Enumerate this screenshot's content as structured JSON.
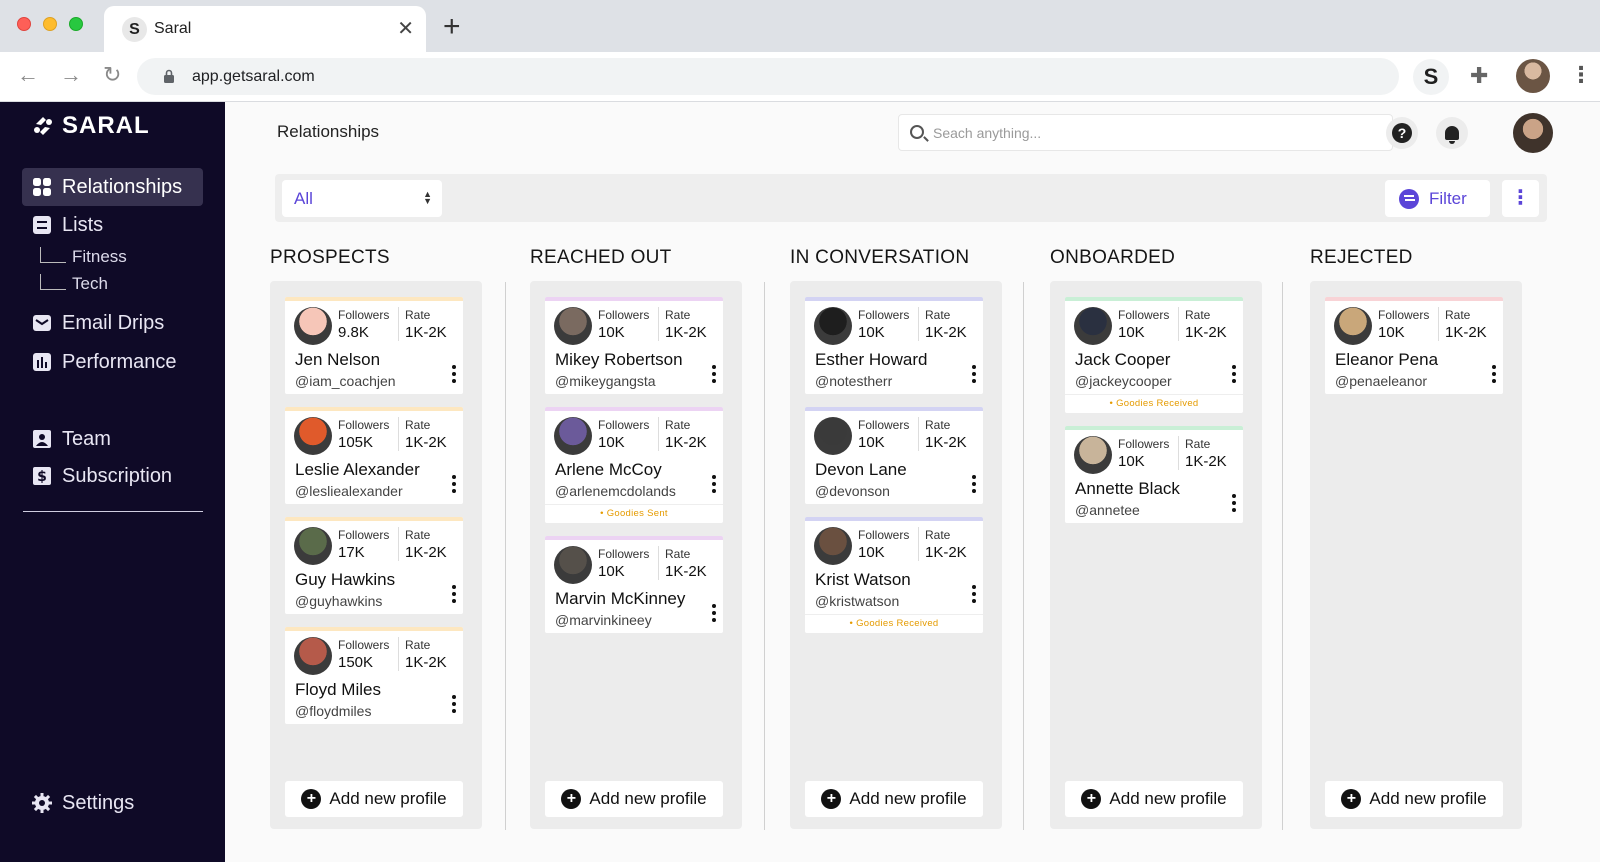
{
  "browser": {
    "tab_title": "Saral",
    "tab_favicon": "S",
    "url": "app.getsaral.com",
    "extension_label": "S"
  },
  "sidebar": {
    "logo_text": "SARAL",
    "items": [
      {
        "label": "Relationships",
        "icon": "grid-icon"
      },
      {
        "label": "Lists",
        "icon": "list-icon"
      },
      {
        "label": "Email Drips",
        "icon": "mail-icon"
      },
      {
        "label": "Performance",
        "icon": "chart-icon"
      },
      {
        "label": "Team",
        "icon": "user-card-icon"
      },
      {
        "label": "Subscription",
        "icon": "dollar-icon"
      }
    ],
    "sub_items": [
      "Fitness",
      "Tech"
    ],
    "settings_label": "Settings"
  },
  "header": {
    "title": "Relationships",
    "search_placeholder": "Seach anything..."
  },
  "toolbar": {
    "select_value": "All",
    "filter_label": "Filter",
    "accent": "#5b45d8"
  },
  "labels": {
    "followers": "Followers",
    "rate": "Rate",
    "add_profile": "Add new profile"
  },
  "columns": [
    {
      "title": "PROSPECTS",
      "stripe": "#fde7c0",
      "cards": [
        {
          "name": "Jen Nelson",
          "handle": "@iam_coachjen",
          "followers": "9.8K",
          "rate": "1K-2K",
          "badge": "",
          "avatar": "#f6c6b8"
        },
        {
          "name": "Leslie Alexander",
          "handle": "@lesliealexander",
          "followers": "105K",
          "rate": "1K-2K",
          "badge": "",
          "avatar": "#e05a2b"
        },
        {
          "name": "Guy Hawkins",
          "handle": "@guyhawkins",
          "followers": "17K",
          "rate": "1K-2K",
          "badge": "",
          "avatar": "#5a6b4a"
        },
        {
          "name": "Floyd Miles",
          "handle": "@floydmiles",
          "followers": "150K",
          "rate": "1K-2K",
          "badge": "",
          "avatar": "#b55a4a"
        }
      ]
    },
    {
      "title": "REACHED OUT",
      "stripe": "#ecd3f3",
      "cards": [
        {
          "name": "Mikey Robertson",
          "handle": "@mikeygangsta",
          "followers": "10K",
          "rate": "1K-2K",
          "badge": "",
          "avatar": "#7a6a60"
        },
        {
          "name": "Arlene McCoy",
          "handle": "@arlenemcdolands",
          "followers": "10K",
          "rate": "1K-2K",
          "badge": "• Goodies Sent",
          "avatar": "#6b5a9a"
        },
        {
          "name": "Marvin McKinney",
          "handle": "@marvinkineey",
          "followers": "10K",
          "rate": "1K-2K",
          "badge": "",
          "avatar": "#55504a"
        }
      ]
    },
    {
      "title": "IN CONVERSATION",
      "stripe": "#d3d3f3",
      "cards": [
        {
          "name": "Esther Howard",
          "handle": "@notestherr",
          "followers": "10K",
          "rate": "1K-2K",
          "badge": "",
          "avatar": "#1e1e1e"
        },
        {
          "name": "Devon Lane",
          "handle": "@devonson",
          "followers": "10K",
          "rate": "1K-2K",
          "badge": "",
          "avatar": "#3a3a3a"
        },
        {
          "name": "Krist Watson",
          "handle": "@kristwatson",
          "followers": "10K",
          "rate": "1K-2K",
          "badge": "• Goodies Received",
          "avatar": "#6a5040"
        }
      ]
    },
    {
      "title": "ONBOARDED",
      "stripe": "#c9efd6",
      "cards": [
        {
          "name": "Jack Cooper",
          "handle": "@jackeycooper",
          "followers": "10K",
          "rate": "1K-2K",
          "badge": "• Goodies Received",
          "avatar": "#2a3040"
        },
        {
          "name": "Annette Black",
          "handle": "@annetee",
          "followers": "10K",
          "rate": "1K-2K",
          "badge": "",
          "avatar": "#c8b49a"
        }
      ]
    },
    {
      "title": "REJECTED",
      "stripe": "#f8d3d6",
      "cards": [
        {
          "name": "Eleanor Pena",
          "handle": "@penaeleanor",
          "followers": "10K",
          "rate": "1K-2K",
          "badge": "",
          "avatar": "#c9a77a"
        }
      ]
    }
  ]
}
